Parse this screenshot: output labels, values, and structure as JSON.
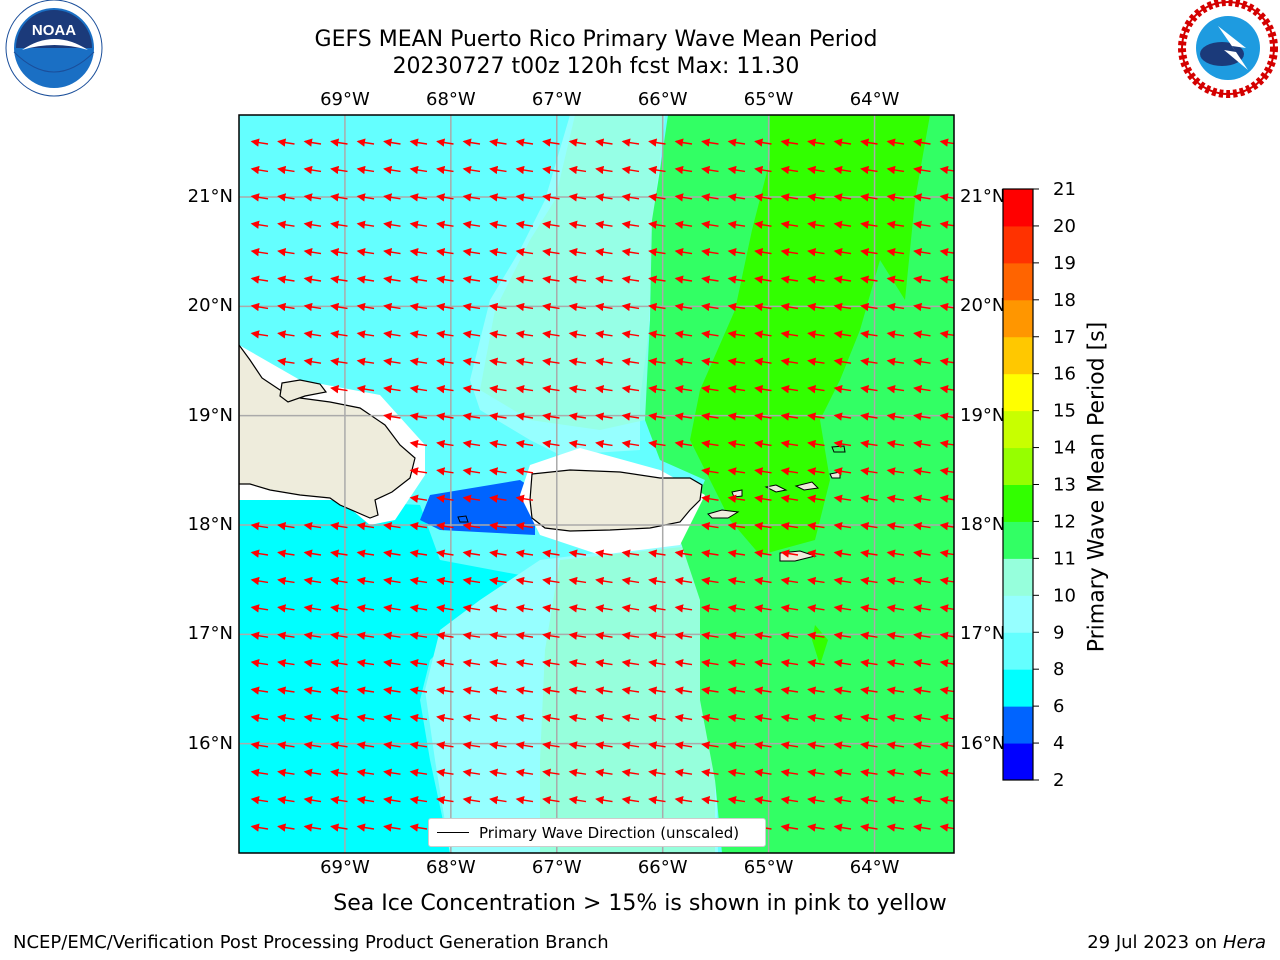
{
  "header": {
    "title_line1": "GEFS MEAN Puerto Rico Primary Wave Mean Period",
    "title_line2": "20230727 t00z 120h fcst   Max: 11.30"
  },
  "logos": {
    "left": {
      "name": "noaa-logo",
      "text": "NOAA",
      "ring_text": "NATIONAL OCEANIC AND ATMOSPHERIC ADMINISTRATION · U.S. DEPARTMENT OF COMMERCE"
    },
    "right": {
      "name": "nws-logo",
      "ring_text": "NATIONAL WEATHER SERVICE"
    }
  },
  "map": {
    "lon_ticks": [
      "69°W",
      "68°W",
      "67°W",
      "66°W",
      "65°W",
      "64°W"
    ],
    "lat_ticks": [
      "21°N",
      "20°N",
      "19°N",
      "18°N",
      "17°N",
      "16°N"
    ],
    "lon_values": [
      -69,
      -68,
      -67,
      -66,
      -65,
      -64
    ],
    "lat_values": [
      21,
      20,
      19,
      18,
      17,
      16
    ],
    "extent": {
      "lon_min": -70,
      "lon_max": -63.25,
      "lat_min": 15.0,
      "lat_max": 21.75
    },
    "arrow_color": "#ff0000",
    "land_color": "#eeecdc",
    "legend_text": "Primary Wave Direction (unscaled)"
  },
  "colorbar": {
    "label": "Primary Wave Mean Period [s]",
    "levels": [
      "2",
      "4",
      "6",
      "8",
      "9",
      "10",
      "11",
      "12",
      "13",
      "14",
      "15",
      "16",
      "17",
      "18",
      "19",
      "20",
      "21"
    ],
    "colors": [
      "#0000ff",
      "#0064ff",
      "#00ffff",
      "#64ffff",
      "#96ffff",
      "#96ffdc",
      "#32ff64",
      "#32ff00",
      "#96ff00",
      "#c8ff00",
      "#ffff00",
      "#ffc800",
      "#ff9600",
      "#ff6400",
      "#ff3200",
      "#ff0000"
    ]
  },
  "footer": {
    "note": "Sea Ice Concentration > 15% is shown in pink to yellow",
    "credit": "NCEP/EMC/Verification Post Processing Product Generation Branch",
    "date_prefix": "29 Jul 2023 on ",
    "date_machine": "Hera"
  }
}
